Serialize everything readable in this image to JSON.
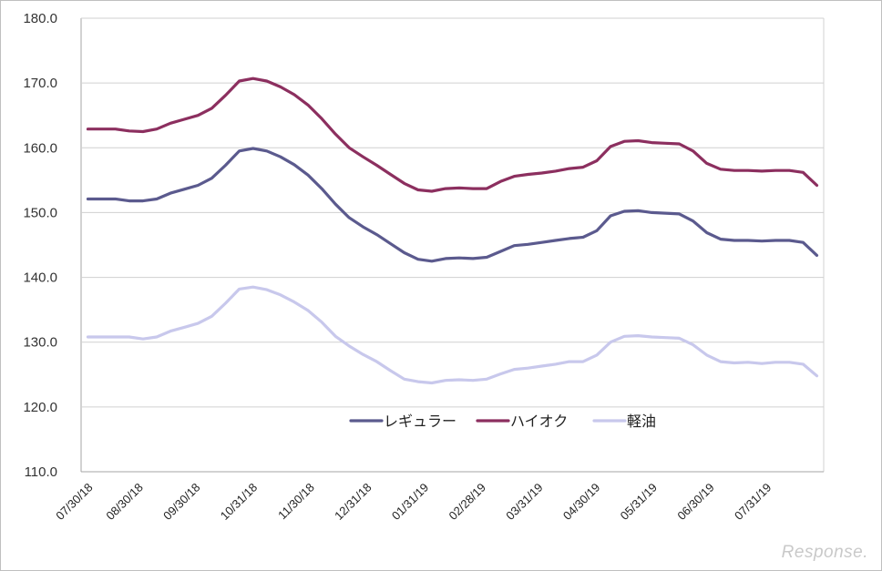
{
  "watermark": "Response.",
  "chart_data": {
    "type": "line",
    "x": [
      "07/30/18",
      "08/06/18",
      "08/13/18",
      "08/20/18",
      "08/27/18",
      "09/03/18",
      "09/10/18",
      "09/18/18",
      "09/25/18",
      "10/01/18",
      "10/09/18",
      "10/15/18",
      "10/22/18",
      "10/29/18",
      "11/05/18",
      "11/12/18",
      "11/19/18",
      "11/26/18",
      "12/03/18",
      "12/10/18",
      "12/17/18",
      "12/25/18",
      "01/07/19",
      "01/15/19",
      "01/21/19",
      "01/28/19",
      "02/04/19",
      "02/12/19",
      "02/18/19",
      "02/25/19",
      "03/04/19",
      "03/11/19",
      "03/18/19",
      "03/25/19",
      "04/01/19",
      "04/08/19",
      "04/15/19",
      "04/22/19",
      "05/07/19",
      "05/13/19",
      "05/20/19",
      "05/27/19",
      "06/03/19",
      "06/10/19",
      "06/17/19",
      "06/24/19",
      "07/01/19",
      "07/08/19",
      "07/16/19",
      "07/22/19",
      "07/29/19",
      "08/05/19",
      "08/13/19",
      "08/19/19"
    ],
    "x_tick_labels": [
      "07/30/18",
      "08/30/18",
      "09/30/18",
      "10/31/18",
      "11/30/18",
      "12/31/18",
      "01/31/19",
      "02/28/19",
      "03/31/19",
      "04/30/19",
      "05/31/19",
      "06/30/19",
      "07/31/19"
    ],
    "series": [
      {
        "name": "レギュラー",
        "color": "#5b5a8e",
        "values": [
          152.1,
          152.1,
          152.1,
          151.8,
          151.8,
          152.1,
          153.0,
          153.6,
          154.2,
          155.3,
          157.3,
          159.5,
          159.9,
          159.5,
          158.6,
          157.4,
          155.8,
          153.7,
          151.3,
          149.2,
          147.8,
          146.6,
          145.2,
          143.8,
          142.8,
          142.5,
          142.9,
          143.0,
          142.9,
          143.1,
          144.0,
          144.9,
          145.1,
          145.4,
          145.7,
          146.0,
          146.2,
          147.2,
          149.5,
          150.2,
          150.3,
          150.0,
          149.9,
          149.8,
          148.7,
          146.9,
          145.9,
          145.7,
          145.7,
          145.6,
          145.7,
          145.7,
          145.4,
          143.4
        ]
      },
      {
        "name": "ハイオク",
        "color": "#8c2f5f",
        "values": [
          162.9,
          162.9,
          162.9,
          162.6,
          162.5,
          162.9,
          163.8,
          164.4,
          165.0,
          166.1,
          168.1,
          170.3,
          170.7,
          170.3,
          169.4,
          168.2,
          166.6,
          164.5,
          162.1,
          160.0,
          158.6,
          157.3,
          155.9,
          154.5,
          153.5,
          153.3,
          153.7,
          153.8,
          153.7,
          153.7,
          154.8,
          155.6,
          155.9,
          156.1,
          156.4,
          156.8,
          157.0,
          158.0,
          160.2,
          161.0,
          161.1,
          160.8,
          160.7,
          160.6,
          159.5,
          157.6,
          156.7,
          156.5,
          156.5,
          156.4,
          156.5,
          156.5,
          156.2,
          154.2
        ]
      },
      {
        "name": "軽油",
        "color": "#c8c8ec",
        "values": [
          130.8,
          130.8,
          130.8,
          130.8,
          130.5,
          130.8,
          131.7,
          132.3,
          132.9,
          134.0,
          136.0,
          138.2,
          138.5,
          138.1,
          137.3,
          136.2,
          134.9,
          133.1,
          130.9,
          129.4,
          128.1,
          127.0,
          125.6,
          124.3,
          123.9,
          123.7,
          124.1,
          124.2,
          124.1,
          124.3,
          125.1,
          125.8,
          126.0,
          126.3,
          126.6,
          127.0,
          127.0,
          128.0,
          130.0,
          130.9,
          131.0,
          130.8,
          130.7,
          130.6,
          129.6,
          128.0,
          127.0,
          126.8,
          126.9,
          126.7,
          126.9,
          126.9,
          126.6,
          124.8
        ]
      }
    ],
    "y_tick_labels": [
      "110.0",
      "120.0",
      "130.0",
      "140.0",
      "150.0",
      "160.0",
      "170.0",
      "180.0"
    ],
    "ylim": [
      110,
      180
    ],
    "grid": true,
    "legend_position": "bottom-center"
  }
}
